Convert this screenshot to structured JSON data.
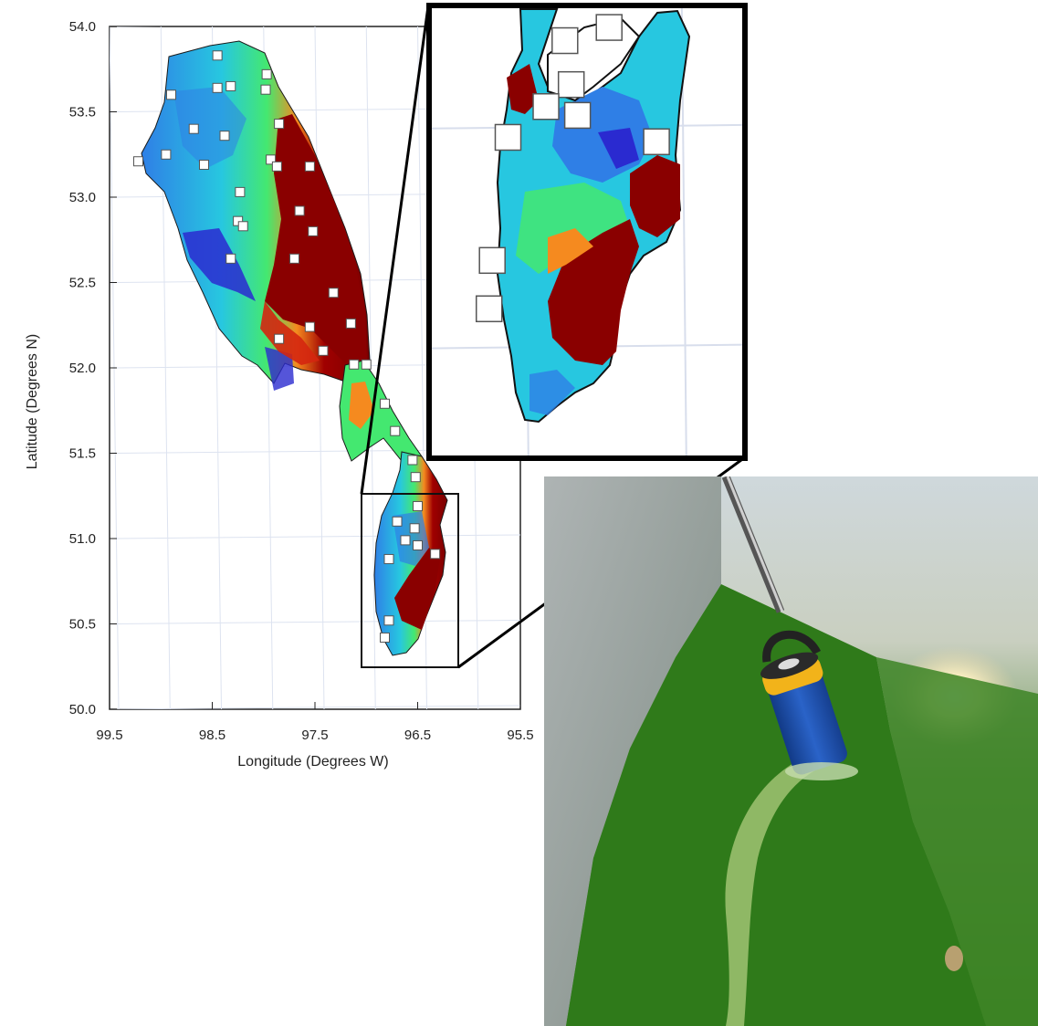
{
  "map": {
    "xlabel": "Longitude (Degrees W)",
    "ylabel": "Latitude (Degrees N)",
    "xlim": [
      99.5,
      95.5
    ],
    "ylim": [
      50.0,
      54.0
    ],
    "x_ticks": [
      "99.5",
      "98.5",
      "97.5",
      "96.5",
      "95.5"
    ],
    "y_ticks": [
      "54.0",
      "53.5",
      "53.0",
      "52.5",
      "52.0",
      "51.5",
      "51.0",
      "50.5",
      "50.0"
    ],
    "colormap": [
      "#2a2ad0",
      "#2f7fe6",
      "#27c7e0",
      "#3be8b0",
      "#44e870",
      "#9be83a",
      "#f2e52a",
      "#f58a1f",
      "#d4260f",
      "#7a0000"
    ],
    "inset_extent": {
      "lon": [
        97.05,
        96.05
      ],
      "lat": [
        50.25,
        51.28
      ]
    },
    "inset_frame_color": "#000000",
    "station_marker_color": "#ffffff"
  },
  "stations": [
    {
      "lon": 98.45,
      "lat": 53.83
    },
    {
      "lon": 98.9,
      "lat": 53.6
    },
    {
      "lon": 98.45,
      "lat": 53.64
    },
    {
      "lon": 98.32,
      "lat": 53.65
    },
    {
      "lon": 97.97,
      "lat": 53.72
    },
    {
      "lon": 97.98,
      "lat": 53.63
    },
    {
      "lon": 98.68,
      "lat": 53.4
    },
    {
      "lon": 98.38,
      "lat": 53.36
    },
    {
      "lon": 97.85,
      "lat": 53.43
    },
    {
      "lon": 99.22,
      "lat": 53.21
    },
    {
      "lon": 98.95,
      "lat": 53.25
    },
    {
      "lon": 98.58,
      "lat": 53.19
    },
    {
      "lon": 97.93,
      "lat": 53.22
    },
    {
      "lon": 97.87,
      "lat": 53.18
    },
    {
      "lon": 97.55,
      "lat": 53.18
    },
    {
      "lon": 98.23,
      "lat": 53.03
    },
    {
      "lon": 97.65,
      "lat": 52.92
    },
    {
      "lon": 98.25,
      "lat": 52.86
    },
    {
      "lon": 98.2,
      "lat": 52.83
    },
    {
      "lon": 97.52,
      "lat": 52.8
    },
    {
      "lon": 98.32,
      "lat": 52.64
    },
    {
      "lon": 97.7,
      "lat": 52.64
    },
    {
      "lon": 97.32,
      "lat": 52.44
    },
    {
      "lon": 97.15,
      "lat": 52.26
    },
    {
      "lon": 97.55,
      "lat": 52.24
    },
    {
      "lon": 97.85,
      "lat": 52.17
    },
    {
      "lon": 97.42,
      "lat": 52.1
    },
    {
      "lon": 97.12,
      "lat": 52.02
    },
    {
      "lon": 97.0,
      "lat": 52.02
    },
    {
      "lon": 96.82,
      "lat": 51.79
    },
    {
      "lon": 96.72,
      "lat": 51.63
    },
    {
      "lon": 96.55,
      "lat": 51.46
    },
    {
      "lon": 96.52,
      "lat": 51.36
    },
    {
      "lon": 96.5,
      "lat": 51.19
    },
    {
      "lon": 96.7,
      "lat": 51.1
    },
    {
      "lon": 96.53,
      "lat": 51.06
    },
    {
      "lon": 96.62,
      "lat": 50.99
    },
    {
      "lon": 96.5,
      "lat": 50.96
    },
    {
      "lon": 96.33,
      "lat": 50.91
    },
    {
      "lon": 96.78,
      "lat": 50.88
    },
    {
      "lon": 96.78,
      "lat": 50.52
    },
    {
      "lon": 96.82,
      "lat": 50.42
    }
  ],
  "inset_stations": [
    {
      "lon": 96.48,
      "lat": 51.23
    },
    {
      "lon": 96.62,
      "lat": 51.2
    },
    {
      "lon": 96.6,
      "lat": 51.1
    },
    {
      "lon": 96.68,
      "lat": 51.05
    },
    {
      "lon": 96.58,
      "lat": 51.03
    },
    {
      "lon": 96.33,
      "lat": 50.97
    },
    {
      "lon": 96.8,
      "lat": 50.98
    },
    {
      "lon": 96.85,
      "lat": 50.7
    },
    {
      "lon": 96.86,
      "lat": 50.59
    }
  ],
  "photo": {
    "sun_color": "#fff8d8",
    "water_colors": [
      "#d7d8d0",
      "#8aa488",
      "#4a8a2a",
      "#2f6f1a"
    ],
    "wall_color": "#9aa3a0",
    "probe_colors": [
      "#1e4fa8",
      "#f2b31a",
      "#303030"
    ]
  }
}
